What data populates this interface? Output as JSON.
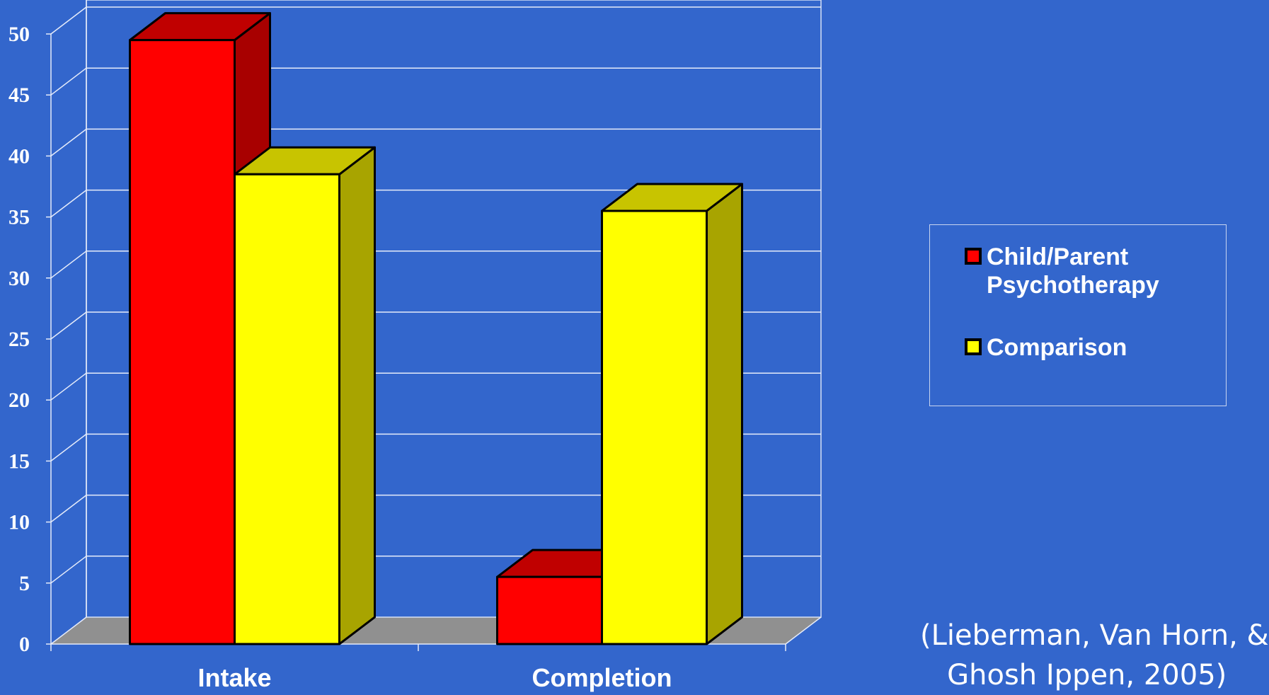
{
  "chart_data": {
    "type": "bar",
    "categories": [
      "Intake",
      "Completion"
    ],
    "series": [
      {
        "name": "Child/Parent Psychotherapy",
        "values": [
          49.5,
          5.5
        ],
        "color": "#ff0000",
        "side_color": "#a80000",
        "top_color": "#c00000"
      },
      {
        "name": "Comparison",
        "values": [
          38.5,
          35.5
        ],
        "color": "#ffff00",
        "side_color": "#a8a400",
        "top_color": "#c8c400"
      }
    ],
    "yticks": [
      "0",
      "5",
      "10",
      "15",
      "20",
      "25",
      "30",
      "35",
      "40",
      "45",
      "50"
    ],
    "ylim": [
      0,
      50
    ],
    "grid": true,
    "legend_position": "right",
    "three_d": true,
    "wall_color": "#3366cc",
    "floor_color": "#909090"
  },
  "legend": {
    "items": [
      {
        "label": "Child/Parent Psychotherapy",
        "color": "#ff0000"
      },
      {
        "label": "Comparison",
        "color": "#ffff00"
      }
    ]
  },
  "citation": "(Lieberman, Van Horn, &\n   Ghosh Ippen, 2005)"
}
